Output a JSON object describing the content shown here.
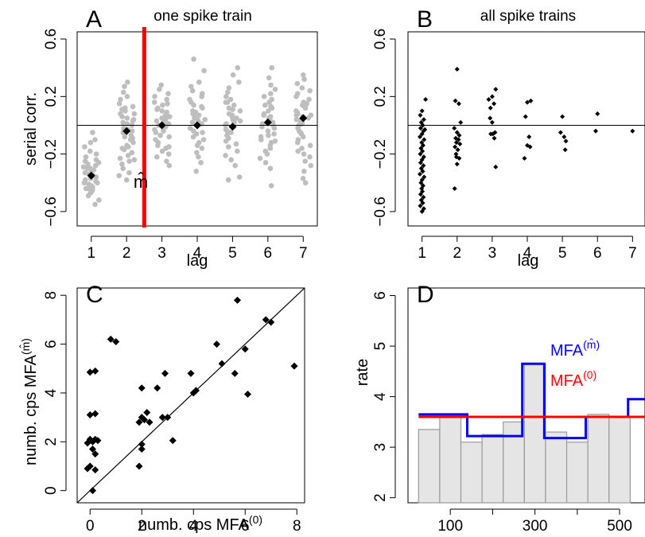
{
  "chart_data": [
    {
      "panel": "A",
      "type": "scatter",
      "title": "one spike train",
      "xlabel": "lag",
      "ylabel": "serial corr.",
      "xlim": [
        0.6,
        7.4
      ],
      "ylim": [
        -0.7,
        0.65
      ],
      "xticks": [
        "1",
        "2",
        "3",
        "4",
        "5",
        "6",
        "7"
      ],
      "yticks": [
        "−0.6",
        "−0.2",
        "0.2",
        "0.6"
      ],
      "ytick_values": [
        -0.6,
        -0.2,
        0.2,
        0.6
      ],
      "hline": 0,
      "vline": {
        "x": 2.5,
        "color": "#ff0000"
      },
      "annotation": "m̂",
      "point_color": "#bebebe",
      "mean_color": "#000000",
      "means": [
        {
          "lag": 1,
          "value": -0.35
        },
        {
          "lag": 2,
          "value": -0.04
        },
        {
          "lag": 3,
          "value": 0.0
        },
        {
          "lag": 4,
          "value": 0.0
        },
        {
          "lag": 5,
          "value": -0.01
        },
        {
          "lag": 6,
          "value": 0.02
        },
        {
          "lag": 7,
          "value": 0.05
        }
      ],
      "clouds": [
        {
          "lag": 1,
          "values": [
            -0.1,
            -0.15,
            -0.18,
            -0.2,
            -0.22,
            -0.24,
            -0.25,
            -0.26,
            -0.27,
            -0.28,
            -0.29,
            -0.3,
            -0.31,
            -0.32,
            -0.33,
            -0.34,
            -0.35,
            -0.36,
            -0.37,
            -0.38,
            -0.39,
            -0.4,
            -0.41,
            -0.42,
            -0.43,
            -0.44,
            -0.45,
            -0.46,
            -0.47,
            -0.49,
            -0.52,
            -0.55,
            -0.05,
            -0.12,
            -0.3,
            -0.36,
            -0.4,
            -0.44
          ]
        },
        {
          "lag": 2,
          "values": [
            0.3,
            0.27,
            0.23,
            0.2,
            0.18,
            0.15,
            0.13,
            0.11,
            0.1,
            0.08,
            0.06,
            0.05,
            0.04,
            0.03,
            0.02,
            0.01,
            0.0,
            -0.02,
            -0.04,
            -0.05,
            -0.07,
            -0.08,
            -0.1,
            -0.12,
            -0.14,
            -0.15,
            -0.17,
            -0.19,
            -0.21,
            -0.23,
            -0.25,
            -0.27,
            -0.3,
            -0.33,
            -0.35,
            -0.38,
            0.08,
            -0.03,
            -0.16,
            -0.24,
            0.12,
            -0.09
          ]
        },
        {
          "lag": 3,
          "values": [
            0.28,
            0.25,
            0.22,
            0.2,
            0.18,
            0.16,
            0.14,
            0.12,
            0.1,
            0.09,
            0.07,
            0.06,
            0.05,
            0.04,
            0.03,
            0.02,
            0.01,
            0.0,
            -0.01,
            -0.03,
            -0.05,
            -0.07,
            -0.08,
            -0.1,
            -0.12,
            -0.14,
            -0.16,
            -0.18,
            -0.2,
            -0.22,
            -0.25,
            -0.28,
            0.11,
            -0.04,
            0.15,
            -0.15
          ]
        },
        {
          "lag": 4,
          "values": [
            0.46,
            0.38,
            0.3,
            0.27,
            0.24,
            0.22,
            0.2,
            0.18,
            0.16,
            0.14,
            0.12,
            0.1,
            0.09,
            0.07,
            0.06,
            0.05,
            0.04,
            0.03,
            0.02,
            0.01,
            0.0,
            -0.02,
            -0.04,
            -0.06,
            -0.08,
            -0.1,
            -0.12,
            -0.14,
            -0.16,
            -0.19,
            -0.22,
            -0.26,
            -0.32,
            0.08,
            -0.05,
            0.13
          ]
        },
        {
          "lag": 5,
          "values": [
            0.4,
            0.35,
            0.3,
            0.26,
            0.23,
            0.2,
            0.18,
            0.16,
            0.14,
            0.12,
            0.1,
            0.08,
            0.07,
            0.06,
            0.05,
            0.04,
            0.03,
            0.02,
            0.01,
            0.0,
            -0.01,
            -0.03,
            -0.05,
            -0.07,
            -0.09,
            -0.11,
            -0.13,
            -0.15,
            -0.18,
            -0.21,
            -0.24,
            -0.28,
            -0.36,
            -0.38,
            0.11,
            -0.04,
            0.16
          ]
        },
        {
          "lag": 6,
          "values": [
            0.4,
            0.33,
            0.28,
            0.25,
            0.22,
            0.2,
            0.18,
            0.16,
            0.14,
            0.12,
            0.1,
            0.08,
            0.07,
            0.05,
            0.04,
            0.03,
            0.02,
            0.01,
            0.0,
            -0.01,
            -0.02,
            -0.04,
            -0.06,
            -0.08,
            -0.1,
            -0.12,
            -0.14,
            -0.16,
            -0.18,
            -0.2,
            -0.23,
            -0.26,
            -0.3,
            -0.42,
            0.06,
            -0.07,
            0.13,
            -0.11
          ]
        },
        {
          "lag": 7,
          "values": [
            0.35,
            0.32,
            0.29,
            0.26,
            0.24,
            0.22,
            0.2,
            0.18,
            0.16,
            0.14,
            0.12,
            0.1,
            0.09,
            0.08,
            0.07,
            0.06,
            0.05,
            0.04,
            0.03,
            0.02,
            0.01,
            0.0,
            -0.01,
            -0.02,
            -0.04,
            -0.06,
            -0.08,
            -0.1,
            -0.12,
            -0.14,
            -0.16,
            -0.18,
            -0.2,
            -0.22,
            -0.25,
            -0.28,
            -0.32,
            -0.37,
            -0.4,
            0.15,
            -0.05,
            0.07
          ]
        }
      ]
    },
    {
      "panel": "B",
      "type": "scatter",
      "title": "all spike trains",
      "xlabel": "lag",
      "ylabel": "",
      "xlim": [
        0.6,
        7.4
      ],
      "ylim": [
        -0.7,
        0.65
      ],
      "xticks": [
        "1",
        "2",
        "3",
        "4",
        "5",
        "6",
        "7"
      ],
      "yticks": [
        "−0.6",
        "−0.2",
        "0.2",
        "0.6"
      ],
      "ytick_values": [
        -0.6,
        -0.2,
        0.2,
        0.6
      ],
      "hline": 0,
      "point_color": "#000000",
      "points": [
        [
          1.0,
          0.1
        ],
        [
          0.95,
          0.07
        ],
        [
          1.05,
          0.04
        ],
        [
          0.98,
          0.02
        ],
        [
          1.02,
          0.0
        ],
        [
          0.96,
          -0.02
        ],
        [
          1.04,
          -0.04
        ],
        [
          1.0,
          -0.06
        ],
        [
          0.94,
          -0.08
        ],
        [
          1.06,
          -0.1
        ],
        [
          0.99,
          -0.12
        ],
        [
          1.03,
          -0.14
        ],
        [
          0.97,
          -0.16
        ],
        [
          1.01,
          -0.18
        ],
        [
          0.95,
          -0.2
        ],
        [
          1.05,
          -0.22
        ],
        [
          1.0,
          -0.24
        ],
        [
          0.96,
          -0.26
        ],
        [
          1.04,
          -0.28
        ],
        [
          0.98,
          -0.3
        ],
        [
          1.02,
          -0.32
        ],
        [
          0.94,
          -0.34
        ],
        [
          1.06,
          -0.36
        ],
        [
          1.0,
          -0.38
        ],
        [
          0.97,
          -0.4
        ],
        [
          1.03,
          -0.42
        ],
        [
          0.99,
          -0.44
        ],
        [
          1.01,
          -0.46
        ],
        [
          0.96,
          -0.48
        ],
        [
          1.04,
          -0.5
        ],
        [
          0.98,
          -0.52
        ],
        [
          1.02,
          -0.54
        ],
        [
          0.95,
          -0.56
        ],
        [
          1.05,
          -0.58
        ],
        [
          1.0,
          -0.6
        ],
        [
          1.1,
          0.18
        ],
        [
          1.08,
          -0.03
        ],
        [
          2.0,
          0.39
        ],
        [
          1.95,
          0.17
        ],
        [
          2.05,
          0.15
        ],
        [
          2.1,
          0.02
        ],
        [
          1.92,
          -0.02
        ],
        [
          2.0,
          -0.05
        ],
        [
          2.06,
          -0.07
        ],
        [
          1.96,
          -0.09
        ],
        [
          2.04,
          -0.1
        ],
        [
          1.98,
          -0.12
        ],
        [
          2.08,
          -0.13
        ],
        [
          1.94,
          -0.15
        ],
        [
          2.02,
          -0.17
        ],
        [
          1.97,
          -0.2
        ],
        [
          2.06,
          -0.23
        ],
        [
          2.0,
          -0.27
        ],
        [
          1.93,
          -0.44
        ],
        [
          1.98,
          -0.22
        ],
        [
          3.0,
          0.2
        ],
        [
          2.95,
          0.12
        ],
        [
          3.05,
          0.15
        ],
        [
          3.1,
          0.25
        ],
        [
          2.94,
          0.05
        ],
        [
          3.0,
          0.02
        ],
        [
          3.08,
          -0.05
        ],
        [
          2.96,
          -0.06
        ],
        [
          3.02,
          -0.06
        ],
        [
          3.06,
          -0.09
        ],
        [
          3.1,
          -0.29
        ],
        [
          2.9,
          0.18
        ],
        [
          4.0,
          0.16
        ],
        [
          3.95,
          0.06
        ],
        [
          4.05,
          -0.08
        ],
        [
          4.0,
          -0.14
        ],
        [
          4.08,
          -0.15
        ],
        [
          3.92,
          -0.23
        ],
        [
          4.1,
          0.17
        ],
        [
          5.0,
          0.06
        ],
        [
          4.95,
          -0.05
        ],
        [
          5.05,
          -0.08
        ],
        [
          5.1,
          -0.11
        ],
        [
          5.08,
          -0.17
        ],
        [
          6.0,
          0.08
        ],
        [
          5.95,
          -0.04
        ],
        [
          7.0,
          -0.04
        ]
      ]
    },
    {
      "panel": "C",
      "type": "scatter",
      "title": "",
      "xlabel": "numb. cps MFA(0)",
      "xlabel_base": "numb. cps MFA",
      "xlabel_sup": "(0)",
      "ylabel_base": "numb. cps MFA",
      "ylabel_sup": "(m̂)",
      "xlim": [
        -0.5,
        8.3
      ],
      "ylim": [
        -0.5,
        8.3
      ],
      "xticks": [
        "0",
        "2",
        "4",
        "6",
        "8"
      ],
      "xtick_values": [
        0,
        2,
        4,
        6,
        8
      ],
      "yticks": [
        "0",
        "2",
        "4",
        "6",
        "8"
      ],
      "ytick_values": [
        0,
        2,
        4,
        6,
        8
      ],
      "diagonal": true,
      "points": [
        [
          0.0,
          4.85
        ],
        [
          0.2,
          4.9
        ],
        [
          0.0,
          3.1
        ],
        [
          0.2,
          3.15
        ],
        [
          0.0,
          2.1
        ],
        [
          0.1,
          2.0
        ],
        [
          0.2,
          2.1
        ],
        [
          0.3,
          2.05
        ],
        [
          -0.1,
          1.95
        ],
        [
          0.1,
          1.7
        ],
        [
          0.2,
          1.5
        ],
        [
          0.0,
          1.0
        ],
        [
          -0.1,
          0.9
        ],
        [
          0.2,
          0.85
        ],
        [
          0.1,
          0.0
        ],
        [
          0.8,
          6.2
        ],
        [
          1.0,
          6.1
        ],
        [
          2.0,
          4.2
        ],
        [
          2.0,
          3.0
        ],
        [
          2.1,
          2.9
        ],
        [
          2.2,
          3.2
        ],
        [
          2.3,
          2.8
        ],
        [
          1.9,
          2.8
        ],
        [
          2.0,
          1.9
        ],
        [
          1.9,
          1.0
        ],
        [
          2.0,
          1.7
        ],
        [
          2.6,
          4.2
        ],
        [
          2.9,
          4.8
        ],
        [
          2.8,
          3.0
        ],
        [
          3.0,
          3.0
        ],
        [
          3.2,
          2.05
        ],
        [
          3.9,
          4.8
        ],
        [
          4.0,
          4.0
        ],
        [
          4.1,
          4.1
        ],
        [
          4.9,
          6.0
        ],
        [
          5.1,
          5.2
        ],
        [
          5.6,
          4.8
        ],
        [
          5.7,
          7.8
        ],
        [
          6.0,
          5.8
        ],
        [
          6.1,
          3.95
        ],
        [
          6.8,
          7.0
        ],
        [
          7.0,
          6.9
        ],
        [
          7.9,
          5.1
        ]
      ]
    },
    {
      "panel": "D",
      "type": "bar",
      "title": "",
      "xlabel": "",
      "ylabel": "rate",
      "xlim": [
        0,
        560
      ],
      "ylim": [
        1.9,
        6.15
      ],
      "xticks": [
        "100",
        "300",
        "500"
      ],
      "xtick_values": [
        100,
        300,
        500
      ],
      "minor_xticks": [
        200,
        400
      ],
      "yticks": [
        "2",
        "3",
        "4",
        "5",
        "6"
      ],
      "ytick_values": [
        2,
        3,
        4,
        5,
        6
      ],
      "bar_fill": "#e5e5e5",
      "bar_stroke": "#9a9a9a",
      "bins": [
        {
          "start": 25,
          "end": 75,
          "value": 3.35
        },
        {
          "start": 75,
          "end": 125,
          "value": 3.6
        },
        {
          "start": 125,
          "end": 175,
          "value": 3.1
        },
        {
          "start": 175,
          "end": 225,
          "value": 3.25
        },
        {
          "start": 225,
          "end": 275,
          "value": 3.5
        },
        {
          "start": 275,
          "end": 325,
          "value": 4.65
        },
        {
          "start": 325,
          "end": 375,
          "value": 3.3
        },
        {
          "start": 375,
          "end": 425,
          "value": 3.1
        },
        {
          "start": 425,
          "end": 475,
          "value": 3.65
        },
        {
          "start": 475,
          "end": 525,
          "value": 3.6
        }
      ],
      "series": [
        {
          "name": "MFA(m̂)",
          "label_base": "MFA",
          "label_sup": "(m̂)",
          "color": "#0000ff",
          "steps": [
            {
              "start": 25,
              "end": 140,
              "value": 3.65
            },
            {
              "start": 140,
              "end": 270,
              "value": 3.22
            },
            {
              "start": 270,
              "end": 322,
              "value": 4.65
            },
            {
              "start": 322,
              "end": 420,
              "value": 3.18
            },
            {
              "start": 420,
              "end": 520,
              "value": 3.6
            },
            {
              "start": 520,
              "end": 560,
              "value": 3.95
            }
          ]
        },
        {
          "name": "MFA(0)",
          "label_base": "MFA",
          "label_sup": "(0)",
          "color": "#ff0000",
          "steps": [
            {
              "start": 25,
              "end": 560,
              "value": 3.6
            }
          ]
        }
      ]
    }
  ],
  "panel_letters": [
    "A",
    "B",
    "C",
    "D"
  ]
}
